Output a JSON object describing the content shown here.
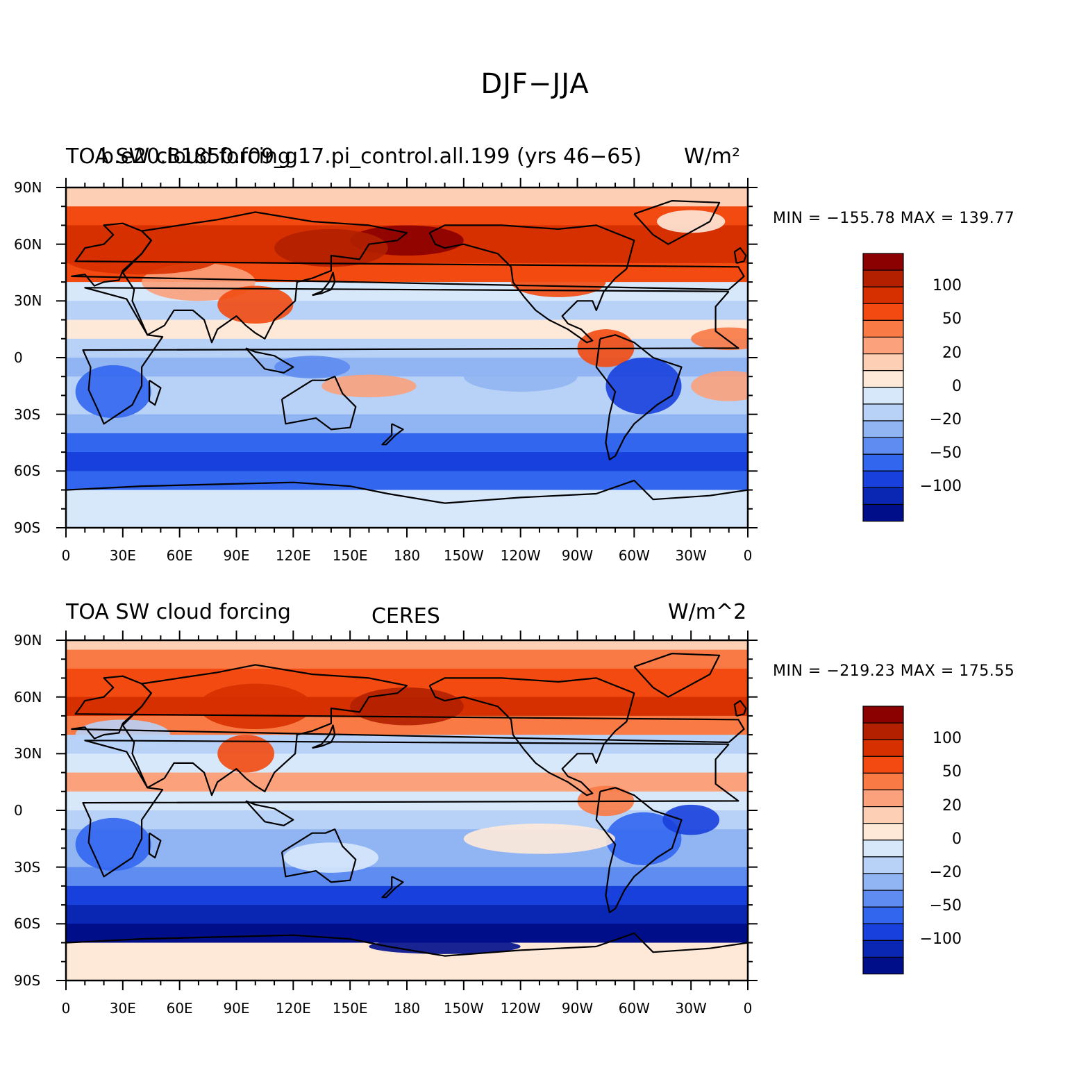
{
  "title": "DJF−JJA",
  "panels": [
    {
      "left_title": "TOA SW cloud forcing",
      "center_title": "b.e20.B1850.f09_g17.pi_control.all.199 (yrs 46−65)",
      "right_title": "W/m²",
      "min_max": "MIN = −155.78 MAX = 139.77"
    },
    {
      "left_title": "TOA SW cloud forcing",
      "center_title": "CERES",
      "right_title": "W/m^2",
      "min_max": "MIN = −219.23 MAX = 175.55"
    }
  ],
  "lat_labels": [
    "90N",
    "60N",
    "30N",
    "0",
    "30S",
    "60S",
    "90S"
  ],
  "lon_labels": [
    "0",
    "30E",
    "60E",
    "90E",
    "120E",
    "150E",
    "180",
    "150W",
    "120W",
    "90W",
    "60W",
    "30W",
    "0"
  ],
  "colorbar": {
    "labels": [
      "100",
      "50",
      "20",
      "0",
      "−20",
      "−50",
      "−100"
    ],
    "colors": [
      "#8b0000",
      "#b22000",
      "#d73000",
      "#f24a10",
      "#f97a45",
      "#fba17c",
      "#fdcfb4",
      "#fee9d9",
      "#d7e8fb",
      "#b8d1f7",
      "#91b5f2",
      "#5e8cf0",
      "#3266ef",
      "#1840dc",
      "#0a27b3",
      "#000e8a"
    ]
  }
}
